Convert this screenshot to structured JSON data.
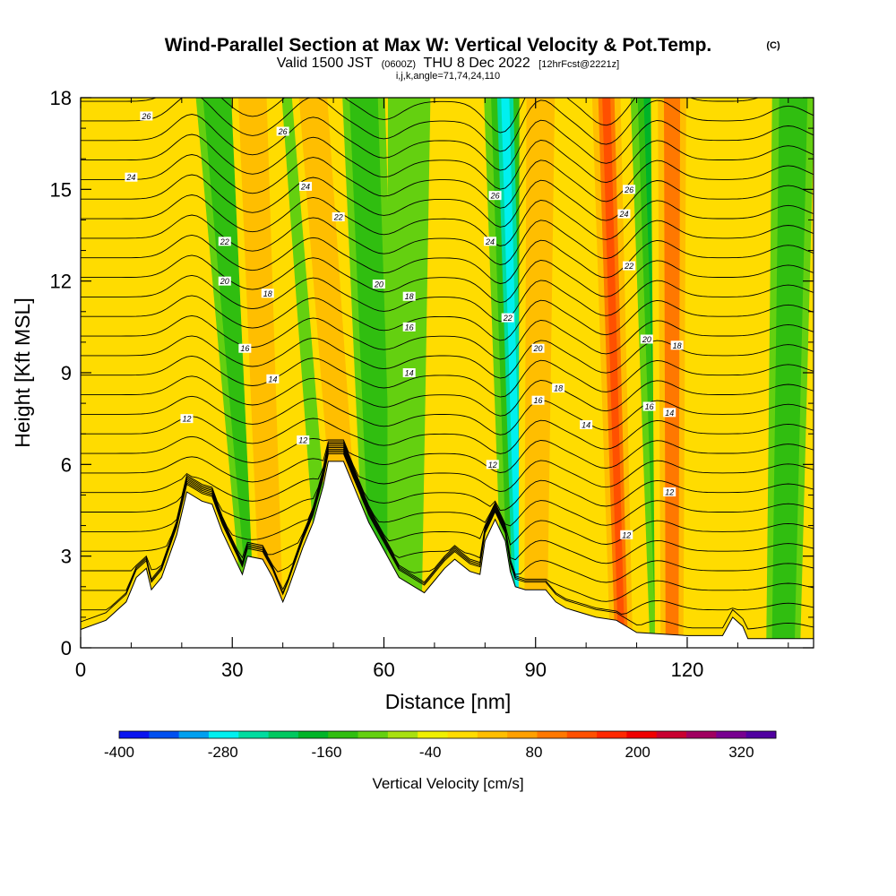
{
  "header": {
    "title": "Wind-Parallel Section at Max W: Vertical Velocity & Pot.Temp.",
    "copyright": "(C)",
    "valid_prefix": "Valid 1500 JST",
    "valid_utc": "(0600Z)",
    "valid_date": "THU 8 Dec 2022",
    "forecast": "[12hrFcst@2221z]",
    "indices": "i,j,k,angle=71,74,24,110"
  },
  "chart_data": {
    "type": "heatmap",
    "xlabel": "Distance [nm]",
    "ylabel": "Height [Kft MSL]",
    "xlim": [
      0,
      145
    ],
    "ylim": [
      0,
      18
    ],
    "x_ticks": [
      0,
      30,
      60,
      90,
      120
    ],
    "x_ticks_labels": [
      "0",
      "30",
      "60",
      "90",
      "120"
    ],
    "x_minor_ticks": [
      10,
      20,
      40,
      50,
      70,
      80,
      100,
      110,
      130,
      140
    ],
    "y_ticks": [
      0,
      3,
      6,
      9,
      12,
      15,
      18
    ],
    "y_ticks_labels": [
      "0",
      "3",
      "6",
      "9",
      "12",
      "15",
      "18"
    ],
    "colorbar": {
      "label": "Vertical Velocity [cm/s]",
      "min": -400,
      "max": 360,
      "step": 40,
      "tick_values": [
        -400,
        -280,
        -160,
        -40,
        80,
        200,
        320
      ],
      "tick_labels": [
        "-400",
        "-280",
        "-160",
        "-40",
        "80",
        "200",
        "320"
      ],
      "colors": [
        "#0a14f0",
        "#0050f0",
        "#00a0f0",
        "#00f0f0",
        "#00dca0",
        "#00c860",
        "#00b428",
        "#30be10",
        "#64d010",
        "#a8e010",
        "#f0f000",
        "#ffdc00",
        "#ffbe00",
        "#ffa000",
        "#ff7800",
        "#ff5000",
        "#ff2800",
        "#f00000",
        "#c80030",
        "#a00060",
        "#780090",
        "#5000a0"
      ]
    },
    "w_bands": [
      {
        "x_top": 27,
        "x_bottom": 36,
        "w": -130
      },
      {
        "x_top": 34,
        "x_bottom": 38,
        "w": 120
      },
      {
        "x_top": 44,
        "x_bottom": 51,
        "w": -60
      },
      {
        "x_top": 46,
        "x_bottom": 54,
        "w": 150
      },
      {
        "x_top": 56,
        "x_bottom": 60,
        "w": -150
      },
      {
        "x_top": 65,
        "x_bottom": 64,
        "w": -50
      },
      {
        "x_top": 84,
        "x_bottom": 87,
        "w": -280
      },
      {
        "x_top": 91,
        "x_bottom": 90,
        "w": 140
      },
      {
        "x_top": 104,
        "x_bottom": 107,
        "w": 220
      },
      {
        "x_top": 113,
        "x_bottom": 116,
        "w": -180
      },
      {
        "x_top": 117,
        "x_bottom": 117,
        "w": 200
      },
      {
        "x_top": 141,
        "x_bottom": 139,
        "w": -140
      }
    ],
    "terrain": [
      [
        0,
        0.6
      ],
      [
        5,
        0.9
      ],
      [
        9,
        1.5
      ],
      [
        11,
        2.3
      ],
      [
        13,
        2.6
      ],
      [
        14,
        1.9
      ],
      [
        16,
        2.3
      ],
      [
        19,
        3.7
      ],
      [
        21,
        5.1
      ],
      [
        24,
        4.8
      ],
      [
        26,
        4.7
      ],
      [
        28,
        3.8
      ],
      [
        30,
        3.1
      ],
      [
        32,
        2.4
      ],
      [
        33,
        3.0
      ],
      [
        36,
        2.9
      ],
      [
        38,
        2.3
      ],
      [
        40,
        1.5
      ],
      [
        41,
        1.9
      ],
      [
        44,
        3.3
      ],
      [
        46,
        4.1
      ],
      [
        48,
        5.3
      ],
      [
        49,
        6.1
      ],
      [
        52,
        6.1
      ],
      [
        55,
        4.9
      ],
      [
        57,
        4.1
      ],
      [
        60,
        3.2
      ],
      [
        63,
        2.3
      ],
      [
        66,
        2.0
      ],
      [
        68,
        1.8
      ],
      [
        70,
        2.2
      ],
      [
        72,
        2.6
      ],
      [
        74,
        2.9
      ],
      [
        77,
        2.5
      ],
      [
        79,
        2.4
      ],
      [
        80,
        3.5
      ],
      [
        82,
        4.2
      ],
      [
        84,
        3.5
      ],
      [
        85,
        2.5
      ],
      [
        86,
        2.0
      ],
      [
        88,
        1.9
      ],
      [
        92,
        1.9
      ],
      [
        94,
        1.5
      ],
      [
        96,
        1.3
      ],
      [
        98,
        1.2
      ],
      [
        100,
        1.1
      ],
      [
        102,
        1.0
      ],
      [
        106,
        0.9
      ],
      [
        110,
        0.5
      ],
      [
        120,
        0.4
      ],
      [
        127,
        0.4
      ],
      [
        128,
        0.7
      ],
      [
        129,
        1.0
      ],
      [
        131,
        0.7
      ],
      [
        132,
        0.3
      ],
      [
        145,
        0.3
      ]
    ],
    "isentrope_labels": [
      {
        "x": 13,
        "y": 17.4,
        "text": "26"
      },
      {
        "x": 10,
        "y": 15.4,
        "text": "24"
      },
      {
        "x": 40,
        "y": 16.9,
        "text": "26"
      },
      {
        "x": 44.5,
        "y": 15.1,
        "text": "24"
      },
      {
        "x": 51,
        "y": 14.1,
        "text": "22"
      },
      {
        "x": 28.5,
        "y": 13.3,
        "text": "22"
      },
      {
        "x": 28.5,
        "y": 12.0,
        "text": "20"
      },
      {
        "x": 37,
        "y": 11.6,
        "text": "18"
      },
      {
        "x": 32.5,
        "y": 9.8,
        "text": "16"
      },
      {
        "x": 38,
        "y": 8.8,
        "text": "14"
      },
      {
        "x": 21,
        "y": 7.5,
        "text": "12"
      },
      {
        "x": 44,
        "y": 6.8,
        "text": "12"
      },
      {
        "x": 59,
        "y": 11.9,
        "text": "20"
      },
      {
        "x": 65,
        "y": 11.5,
        "text": "18"
      },
      {
        "x": 65,
        "y": 10.5,
        "text": "16"
      },
      {
        "x": 65,
        "y": 9.0,
        "text": "14"
      },
      {
        "x": 82,
        "y": 14.8,
        "text": "26"
      },
      {
        "x": 81,
        "y": 13.3,
        "text": "24"
      },
      {
        "x": 84.5,
        "y": 10.8,
        "text": "22"
      },
      {
        "x": 90.5,
        "y": 9.8,
        "text": "20"
      },
      {
        "x": 94.5,
        "y": 8.5,
        "text": "18"
      },
      {
        "x": 90.5,
        "y": 8.1,
        "text": "16"
      },
      {
        "x": 100,
        "y": 7.3,
        "text": "14"
      },
      {
        "x": 81.5,
        "y": 6.0,
        "text": "12"
      },
      {
        "x": 108.5,
        "y": 15.0,
        "text": "26"
      },
      {
        "x": 107.5,
        "y": 14.2,
        "text": "24"
      },
      {
        "x": 108.5,
        "y": 12.5,
        "text": "22"
      },
      {
        "x": 112,
        "y": 10.1,
        "text": "20"
      },
      {
        "x": 118,
        "y": 9.9,
        "text": "18"
      },
      {
        "x": 112.5,
        "y": 7.9,
        "text": "16"
      },
      {
        "x": 116.5,
        "y": 7.7,
        "text": "14"
      },
      {
        "x": 116.5,
        "y": 5.1,
        "text": "12"
      },
      {
        "x": 108,
        "y": 3.7,
        "text": "12"
      }
    ]
  }
}
